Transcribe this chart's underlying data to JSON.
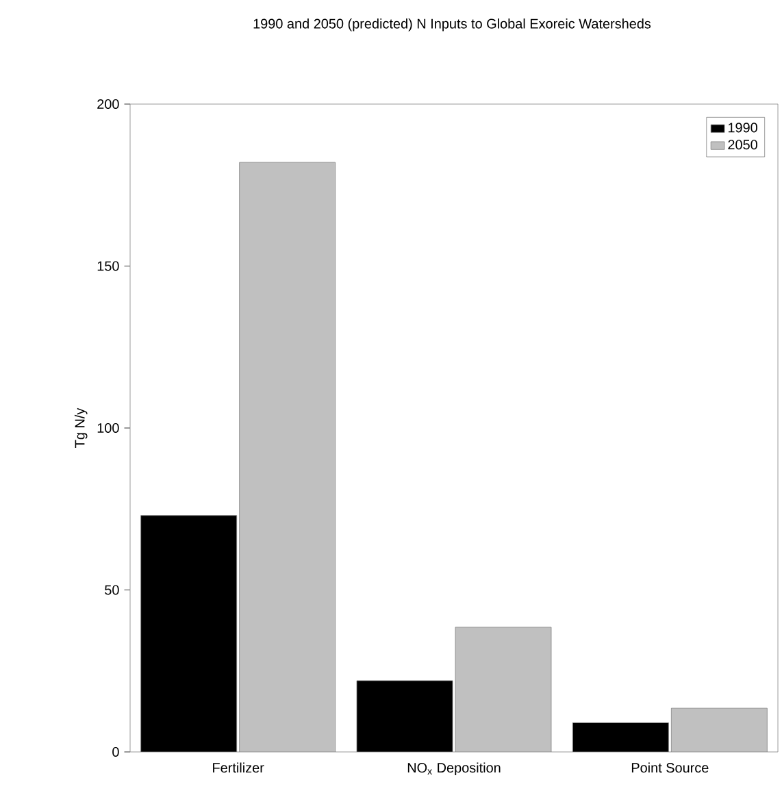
{
  "chart_data": {
    "type": "bar",
    "title": "1990 and 2050 (predicted) N Inputs to Global Exoreic Watersheds",
    "ylabel": "Tg N/y",
    "categories": [
      "Fertilizer",
      "NO$_{x}$ Deposition",
      "Point Source"
    ],
    "series": [
      {
        "name": "1990",
        "color": "#000000",
        "values": [
          73,
          22,
          9
        ]
      },
      {
        "name": "2050",
        "color": "#c0c0c0",
        "values": [
          182,
          38.5,
          13.5
        ]
      }
    ],
    "ylim": [
      0,
      200
    ],
    "yticks": [
      0,
      50,
      100,
      150,
      200
    ],
    "grid": false,
    "legend": "top right"
  }
}
